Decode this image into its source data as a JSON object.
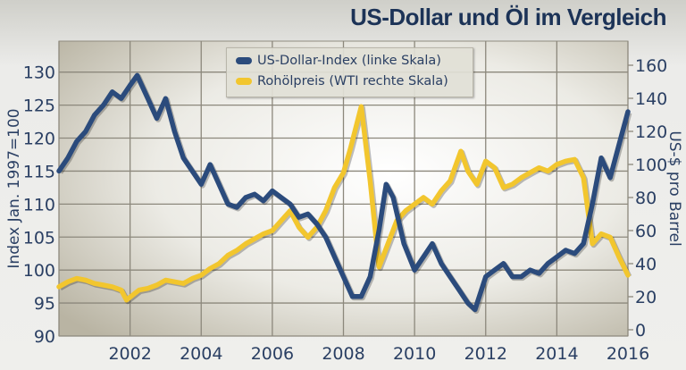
{
  "chart_data": {
    "type": "line",
    "title": "US-Dollar und Öl im Vergleich",
    "xlabel": "",
    "ylabel_left": "Index Jan. 1997=100",
    "ylabel_right": "US-$ pro Barrel",
    "xlim": [
      2000,
      2016
    ],
    "ylim_left": [
      90,
      134.7
    ],
    "ylim_right": [
      -3.8,
      174.6
    ],
    "x_ticks": [
      "2002",
      "2004",
      "2006",
      "2008",
      "2010",
      "2012",
      "2014",
      "2016"
    ],
    "y_ticks_left": [
      "90",
      "95",
      "100",
      "105",
      "110",
      "115",
      "120",
      "125",
      "130"
    ],
    "y_ticks_right": [
      "0",
      "20",
      "40",
      "60",
      "80",
      "100",
      "120",
      "140",
      "160"
    ],
    "grid": true,
    "legend_position": "top-center",
    "series": [
      {
        "name": "US-Dollar-Index (linke Skala)",
        "axis": "left",
        "color": "#2b4b7c",
        "x": [
          2000,
          2000.25,
          2000.5,
          2000.75,
          2001,
          2001.25,
          2001.5,
          2001.75,
          2002,
          2002.2,
          2002.5,
          2002.75,
          2003,
          2003.25,
          2003.5,
          2003.75,
          2004,
          2004.25,
          2004.5,
          2004.75,
          2005,
          2005.25,
          2005.5,
          2005.75,
          2006,
          2006.25,
          2006.5,
          2006.75,
          2007,
          2007.25,
          2007.5,
          2007.75,
          2008,
          2008.25,
          2008.5,
          2008.75,
          2009,
          2009.2,
          2009.4,
          2009.7,
          2010,
          2010.25,
          2010.5,
          2010.75,
          2011,
          2011.25,
          2011.5,
          2011.7,
          2012,
          2012.25,
          2012.5,
          2012.75,
          2013,
          2013.25,
          2013.5,
          2013.75,
          2014,
          2014.25,
          2014.5,
          2014.75,
          2015,
          2015.25,
          2015.5,
          2015.75,
          2016
        ],
        "y": [
          115,
          117,
          119.5,
          121,
          123.5,
          125,
          127,
          126,
          128,
          129.5,
          126,
          123,
          126,
          121,
          117,
          115,
          113,
          116,
          113,
          110,
          109.5,
          111,
          111.5,
          110.5,
          112,
          111,
          110,
          108,
          108.5,
          107,
          105,
          102,
          99,
          96,
          96,
          99,
          106,
          113,
          111,
          104,
          100,
          102,
          104,
          101,
          99,
          97,
          95,
          94,
          99,
          100,
          101,
          99,
          99,
          100,
          99.5,
          101,
          102,
          103,
          102.5,
          104,
          110,
          117,
          114,
          119,
          124
        ]
      },
      {
        "name": "Rohölpreis (WTI rechte Skala)",
        "axis": "right",
        "color": "#f2c62e",
        "x": [
          2000,
          2000.25,
          2000.5,
          2000.75,
          2001,
          2001.25,
          2001.5,
          2001.75,
          2001.9,
          2002.25,
          2002.5,
          2002.75,
          2003,
          2003.25,
          2003.5,
          2003.75,
          2004,
          2004.25,
          2004.5,
          2004.75,
          2005,
          2005.25,
          2005.5,
          2005.75,
          2006,
          2006.25,
          2006.5,
          2006.75,
          2007,
          2007.25,
          2007.5,
          2007.75,
          2008,
          2008.2,
          2008.5,
          2008.75,
          2009,
          2009.25,
          2009.5,
          2009.75,
          2010,
          2010.25,
          2010.5,
          2010.75,
          2011,
          2011.3,
          2011.5,
          2011.75,
          2012,
          2012.25,
          2012.5,
          2012.75,
          2013,
          2013.25,
          2013.5,
          2013.75,
          2014,
          2014.25,
          2014.5,
          2014.75,
          2015,
          2015.25,
          2015.5,
          2015.75,
          2016
        ],
        "y": [
          26,
          29,
          31,
          30,
          28,
          27,
          26,
          24,
          18,
          24,
          25,
          27,
          30,
          29,
          28,
          31,
          33,
          37,
          40,
          45,
          48,
          52,
          55,
          58,
          60,
          66,
          72,
          62,
          56,
          62,
          72,
          86,
          95,
          110,
          135,
          90,
          38,
          52,
          66,
          72,
          76,
          80,
          76,
          84,
          90,
          108,
          96,
          88,
          102,
          98,
          86,
          88,
          92,
          95,
          98,
          96,
          100,
          102,
          103,
          92,
          52,
          58,
          56,
          44,
          33
        ]
      }
    ]
  }
}
